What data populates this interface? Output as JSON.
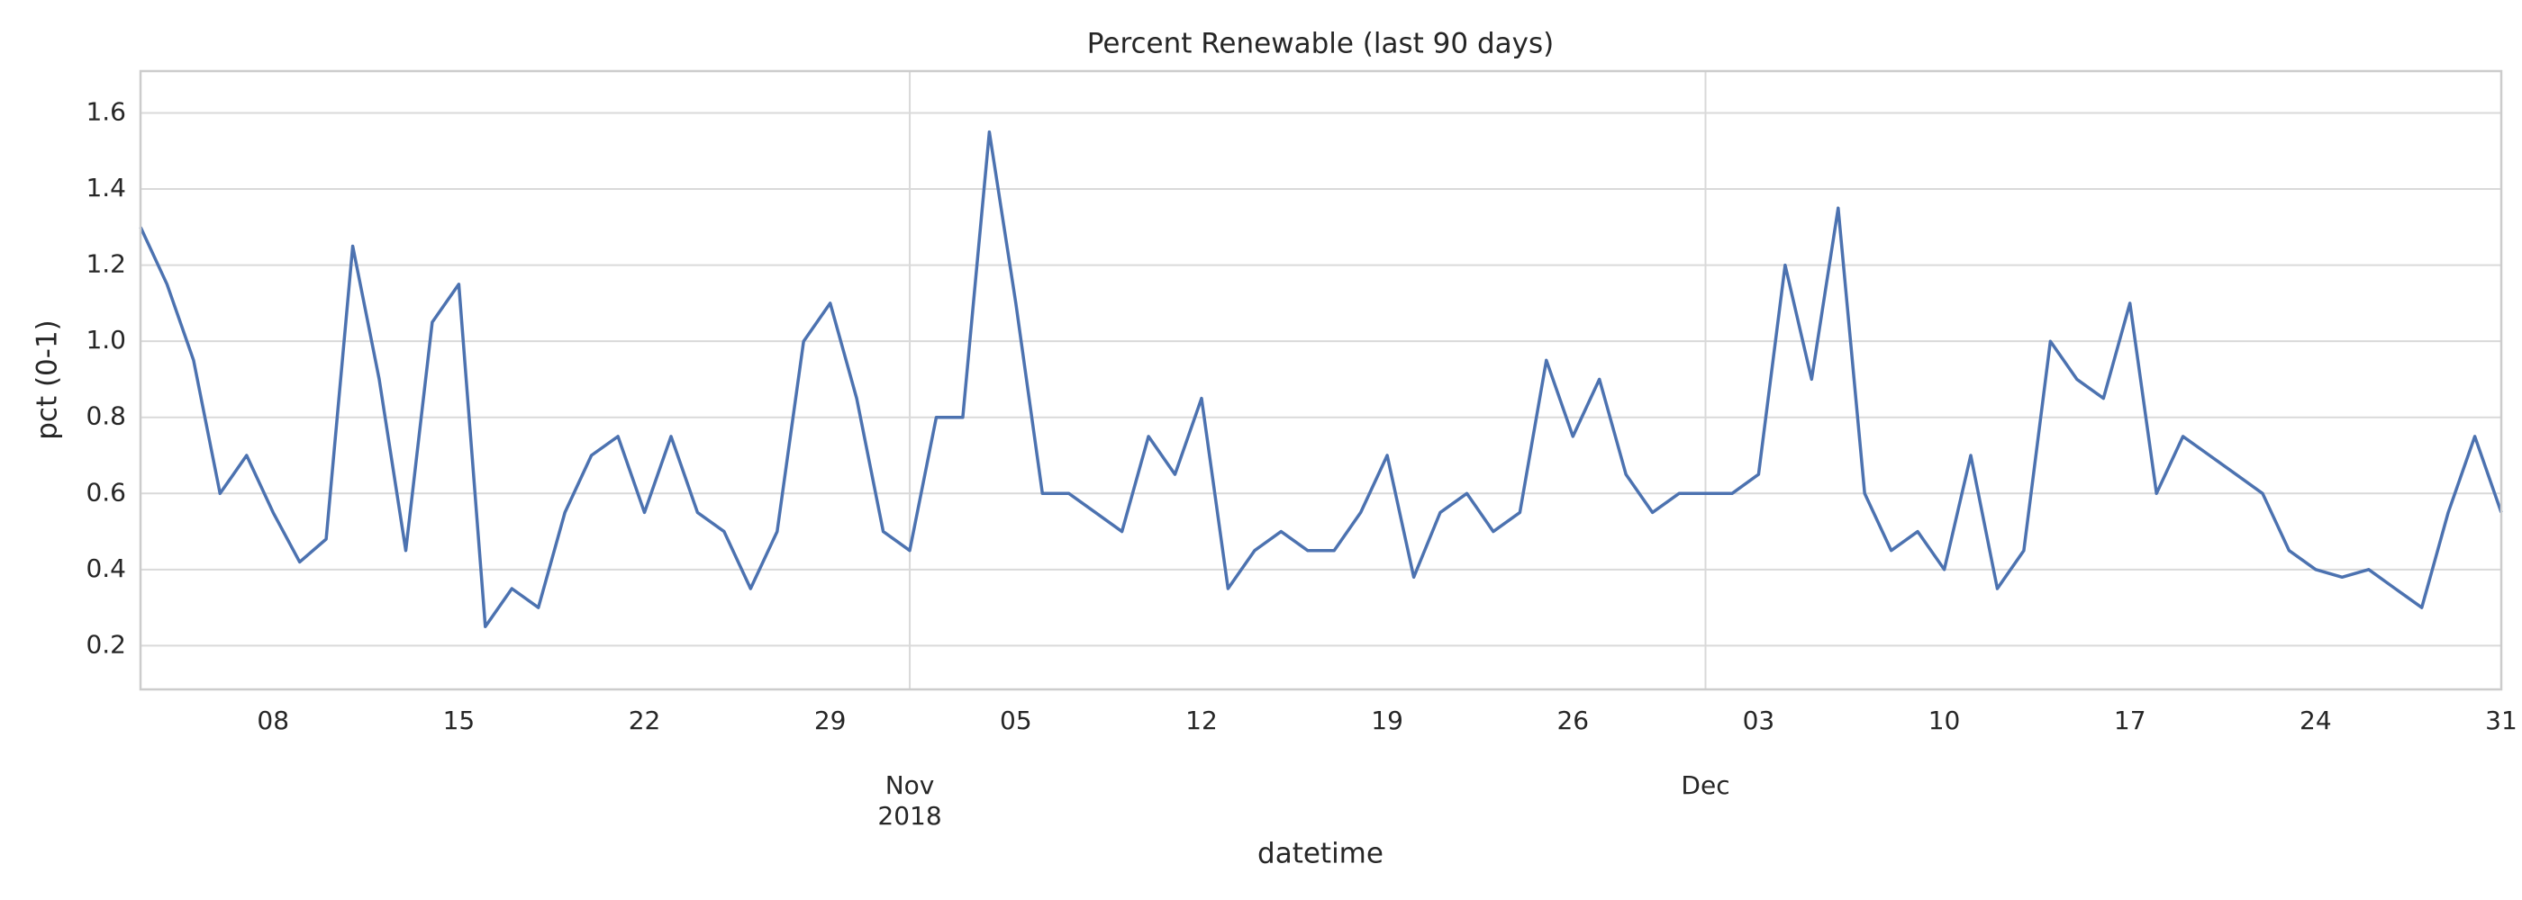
{
  "chart_data": {
    "type": "line",
    "title": "Percent Renewable (last 90 days)",
    "x_label": "datetime",
    "y_label": "pct (0-1)",
    "color": "#4c72b0",
    "grid": true,
    "x": [
      "2018-10-03",
      "2018-10-04",
      "2018-10-05",
      "2018-10-06",
      "2018-10-07",
      "2018-10-08",
      "2018-10-09",
      "2018-10-10",
      "2018-10-11",
      "2018-10-12",
      "2018-10-13",
      "2018-10-14",
      "2018-10-15",
      "2018-10-16",
      "2018-10-17",
      "2018-10-18",
      "2018-10-19",
      "2018-10-20",
      "2018-10-21",
      "2018-10-22",
      "2018-10-23",
      "2018-10-24",
      "2018-10-25",
      "2018-10-26",
      "2018-10-27",
      "2018-10-28",
      "2018-10-29",
      "2018-10-30",
      "2018-10-31",
      "2018-11-01",
      "2018-11-02",
      "2018-11-03",
      "2018-11-04",
      "2018-11-05",
      "2018-11-06",
      "2018-11-07",
      "2018-11-08",
      "2018-11-09",
      "2018-11-10",
      "2018-11-11",
      "2018-11-12",
      "2018-11-13",
      "2018-11-14",
      "2018-11-15",
      "2018-11-16",
      "2018-11-17",
      "2018-11-18",
      "2018-11-19",
      "2018-11-20",
      "2018-11-21",
      "2018-11-22",
      "2018-11-23",
      "2018-11-24",
      "2018-11-25",
      "2018-11-26",
      "2018-11-27",
      "2018-11-28",
      "2018-11-29",
      "2018-11-30",
      "2018-12-01",
      "2018-12-02",
      "2018-12-03",
      "2018-12-04",
      "2018-12-05",
      "2018-12-06",
      "2018-12-07",
      "2018-12-08",
      "2018-12-09",
      "2018-12-10",
      "2018-12-11",
      "2018-12-12",
      "2018-12-13",
      "2018-12-14",
      "2018-12-15",
      "2018-12-16",
      "2018-12-17",
      "2018-12-18",
      "2018-12-19",
      "2018-12-20",
      "2018-12-21",
      "2018-12-22",
      "2018-12-23",
      "2018-12-24",
      "2018-12-25",
      "2018-12-26",
      "2018-12-27",
      "2018-12-28",
      "2018-12-29",
      "2018-12-30",
      "2018-12-31"
    ],
    "values": [
      1.3,
      1.15,
      0.95,
      0.6,
      0.7,
      0.55,
      0.42,
      0.48,
      1.25,
      0.9,
      0.45,
      1.05,
      1.15,
      0.25,
      0.35,
      0.3,
      0.55,
      0.7,
      0.75,
      0.55,
      0.75,
      0.55,
      0.5,
      0.35,
      0.5,
      1.0,
      1.1,
      0.85,
      0.5,
      0.45,
      0.8,
      0.8,
      1.55,
      1.1,
      0.6,
      0.6,
      0.55,
      0.5,
      0.75,
      0.65,
      0.85,
      0.35,
      0.45,
      0.5,
      0.45,
      0.45,
      0.55,
      0.7,
      0.38,
      0.55,
      0.6,
      0.5,
      0.55,
      0.95,
      0.75,
      0.9,
      0.65,
      0.55,
      0.6,
      0.6,
      0.6,
      0.65,
      1.2,
      0.9,
      1.35,
      0.6,
      0.45,
      0.5,
      0.4,
      0.7,
      0.35,
      0.45,
      1.0,
      0.9,
      0.85,
      1.1,
      0.6,
      0.75,
      0.7,
      0.65,
      0.6,
      0.45,
      0.4,
      0.38,
      0.4,
      0.35,
      0.3,
      0.55,
      0.75,
      0.55
    ],
    "xlim": [
      "2018-10-03",
      "2018-12-31"
    ],
    "xticks": [
      {
        "value": "2018-10-08",
        "label": "08"
      },
      {
        "value": "2018-10-15",
        "label": "15"
      },
      {
        "value": "2018-10-22",
        "label": "22"
      },
      {
        "value": "2018-10-29",
        "label": "29"
      },
      {
        "value": "2018-11-05",
        "label": "05"
      },
      {
        "value": "2018-11-12",
        "label": "12"
      },
      {
        "value": "2018-11-19",
        "label": "19"
      },
      {
        "value": "2018-11-26",
        "label": "26"
      },
      {
        "value": "2018-12-03",
        "label": "03"
      },
      {
        "value": "2018-12-10",
        "label": "10"
      },
      {
        "value": "2018-12-17",
        "label": "17"
      },
      {
        "value": "2018-12-24",
        "label": "24"
      },
      {
        "value": "2018-12-31",
        "label": "31"
      }
    ],
    "xticks_major": [
      {
        "value": "2018-11-01",
        "label": "Nov"
      },
      {
        "value": "2018-12-01",
        "label": "Dec"
      }
    ],
    "year_label": "2018",
    "ylim": [
      0.085,
      1.71
    ],
    "yticks": [
      0.2,
      0.4,
      0.6,
      0.8,
      {
        "value": 1,
        "label": "1.0"
      },
      1.2,
      1.4,
      1.6
    ]
  }
}
